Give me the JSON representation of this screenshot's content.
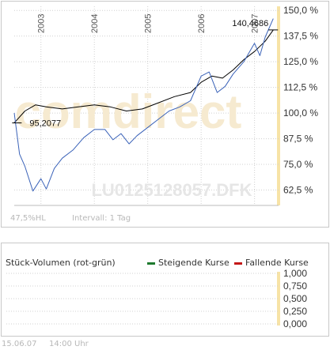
{
  "chart_data": {
    "type": "line",
    "x_tick_labels": [
      "2003",
      "2004",
      "2005",
      "2006",
      "2007"
    ],
    "x_tick_years": [
      2003,
      2004,
      2005,
      2006,
      2007
    ],
    "y_tick_labels": [
      "150,0 %",
      "137,5 %",
      "125,0 %",
      "112,5 %",
      "100,0 %",
      "87,5 %",
      "75,0 %",
      "62,5 %"
    ],
    "y_ticks": [
      150,
      137.5,
      125,
      112.5,
      100,
      87.5,
      75,
      62.5
    ],
    "ylim": [
      55,
      152
    ],
    "xlim": [
      2002.5,
      2007.45
    ],
    "annotations": [
      {
        "text": "95,2077",
        "x": 2002.55,
        "y": 95.2
      },
      {
        "text": "140,4686",
        "x": 2007.35,
        "y": 140.5
      }
    ],
    "series": [
      {
        "color": "#000000",
        "x": [
          2002.5,
          2002.7,
          2002.9,
          2003.1,
          2003.4,
          2003.7,
          2004.0,
          2004.3,
          2004.6,
          2004.9,
          2005.2,
          2005.5,
          2005.8,
          2006.0,
          2006.2,
          2006.4,
          2006.6,
          2006.8,
          2007.0,
          2007.2,
          2007.35
        ],
        "values": [
          95.2,
          101,
          104,
          103,
          102,
          103,
          104,
          103,
          101,
          102,
          105,
          108,
          110,
          115,
          118,
          117,
          121,
          126,
          130,
          135,
          140.5
        ]
      },
      {
        "color": "#3a62b8",
        "x": [
          2002.5,
          2002.6,
          2002.7,
          2002.85,
          2003.0,
          2003.1,
          2003.25,
          2003.4,
          2003.6,
          2003.8,
          2004.0,
          2004.2,
          2004.35,
          2004.5,
          2004.65,
          2004.8,
          2005.0,
          2005.2,
          2005.4,
          2005.6,
          2005.8,
          2006.0,
          2006.15,
          2006.3,
          2006.45,
          2006.6,
          2006.8,
          2007.0,
          2007.1,
          2007.2,
          2007.35
        ],
        "values": [
          100,
          80,
          74,
          62,
          68,
          63,
          73,
          78,
          82,
          88,
          92,
          92,
          87,
          90,
          85,
          89,
          93,
          97,
          101,
          103,
          106,
          118,
          120,
          110,
          113,
          119,
          125,
          134,
          128,
          137,
          146
        ]
      }
    ]
  },
  "watermark": {
    "brand": "comdirect",
    "isin": "LU0125128057.DFK"
  },
  "footer": {
    "hl": "47,5%HL",
    "interval": "Intervall: 1 Tag",
    "date": "15.06.07",
    "time": "14:00 Uhr"
  },
  "volume": {
    "title": "Stück-Volumen (rot-grün)",
    "legend_up": "Steigende Kurse",
    "legend_down": "Fallende Kurse",
    "up_color": "#1e7a2e",
    "down_color": "#c41818",
    "y_tick_labels": [
      "1,000",
      "0,750",
      "0,500",
      "0,250",
      "0,000"
    ]
  },
  "colors": {
    "highlight_band": "#f7e3a6",
    "grid": "#d0d0d0"
  }
}
